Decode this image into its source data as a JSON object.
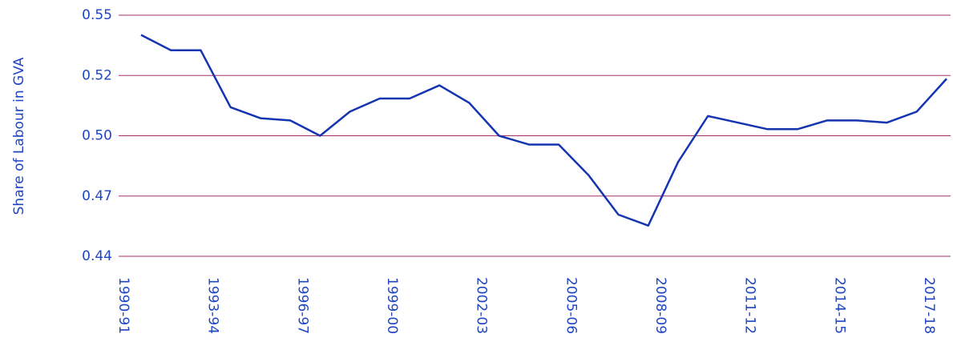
{
  "chart_data": {
    "type": "line",
    "y_label": "Share of Labour in GVA",
    "categories": [
      "1990-91",
      null,
      null,
      "1993-94",
      null,
      null,
      "1996-97",
      null,
      null,
      "1999-00",
      null,
      null,
      "2002-03",
      null,
      null,
      "2005-06",
      null,
      null,
      "2008-09",
      null,
      null,
      "2011-12",
      null,
      null,
      "2014-15",
      null,
      null,
      "2017-18"
    ],
    "series": [
      {
        "color": "#1535b0",
        "values": [
          0.541,
          0.534,
          0.534,
          0.508,
          0.503,
          0.502,
          0.495,
          0.506,
          0.512,
          0.512,
          0.518,
          0.51,
          0.495,
          0.491,
          0.491,
          0.477,
          0.459,
          0.454,
          0.483,
          0.504,
          0.501,
          0.498,
          0.498,
          0.502,
          0.502,
          0.501,
          0.506,
          0.521
        ]
      }
    ],
    "ylim": [
      0.44,
      0.55
    ],
    "yticks": [
      0.44,
      {
        "value": 0.4675,
        "label": "0.47"
      },
      {
        "value": 0.495,
        "label": "0.50"
      },
      {
        "value": 0.5225,
        "label": "0.52"
      },
      0.55
    ],
    "grid": true,
    "grid_color": "#a3306e"
  }
}
